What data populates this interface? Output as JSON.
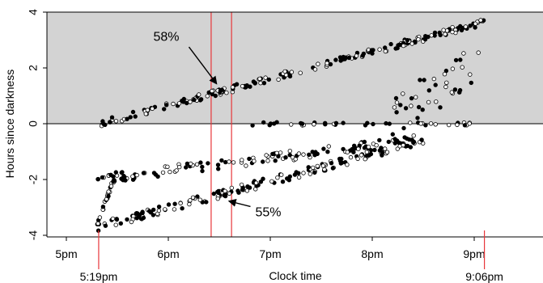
{
  "chart_data": {
    "type": "scatter",
    "title": "",
    "xlabel": "Clock time",
    "ylabel": "Hours since darkness",
    "xlim": [
      17.0,
      21.67
    ],
    "ylim": [
      -4.1,
      4.2
    ],
    "x_ticks": [
      {
        "value": 17,
        "label": "5pm"
      },
      {
        "value": 18,
        "label": "6pm"
      },
      {
        "value": 19,
        "label": "7pm"
      },
      {
        "value": 20,
        "label": "8pm"
      },
      {
        "value": 21,
        "label": "9pm"
      }
    ],
    "y_ticks": [
      {
        "value": -4,
        "label": "-4"
      },
      {
        "value": -2,
        "label": "-2"
      },
      {
        "value": 0,
        "label": "0"
      },
      {
        "value": 2,
        "label": "2"
      },
      {
        "value": 4,
        "label": "4"
      }
    ],
    "extra_x_labels": [
      {
        "value": 17.317,
        "label": "5:19pm"
      },
      {
        "value": 21.1,
        "label": "9:06pm"
      }
    ],
    "shaded_region": {
      "y_from": 0,
      "y_to": 4.2,
      "color": "#d3d3d3"
    },
    "zero_line": 0,
    "vertical_lines": [
      {
        "x": 18.42,
        "color": "#e8363a"
      },
      {
        "x": 18.62,
        "color": "#e8363a"
      }
    ],
    "annotations": [
      {
        "text": "58%",
        "at_x": 18.5,
        "at_y": 1.4,
        "text_x": 17.98,
        "text_y": 3.1,
        "arrow_to_x": 18.47,
        "arrow_to_y": 1.45
      },
      {
        "text": "55%",
        "at_x": 18.6,
        "at_y": -2.8,
        "text_x": 18.98,
        "text_y": -3.2,
        "arrow_to_x": 18.6,
        "arrow_to_y": -2.78
      }
    ],
    "series": [
      {
        "name": "",
        "marker": "filled"
      },
      {
        "name": "",
        "marker": "open"
      }
    ],
    "bands": [
      {
        "x_start": 17.33,
        "x_end": 21.1,
        "y_start": 0.0,
        "y_end": 3.65,
        "spread": 0.12,
        "n": 210
      },
      {
        "x_start": 18.8,
        "x_end": 21.1,
        "y_start": 0.0,
        "y_end": 0.0,
        "spread": 0.06,
        "n": 40
      },
      {
        "x_start": 20.2,
        "x_end": 21.1,
        "y_start": 0.4,
        "y_end": 2.2,
        "spread": 0.8,
        "n": 40
      },
      {
        "x_start": 17.3,
        "x_end": 20.5,
        "y_start": -2.0,
        "y_end": -0.55,
        "spread": 0.18,
        "n": 130
      },
      {
        "x_start": 17.3,
        "x_end": 20.5,
        "y_start": -3.7,
        "y_end": -0.6,
        "spread": 0.15,
        "n": 170
      },
      {
        "x_start": 17.3,
        "x_end": 17.5,
        "y_start": -3.6,
        "y_end": -1.7,
        "spread": 0.1,
        "n": 25
      }
    ],
    "colors": {
      "axis": "#000000",
      "marker": "#000000",
      "vline": "#e8363a",
      "shade": "#d3d3d3"
    }
  }
}
